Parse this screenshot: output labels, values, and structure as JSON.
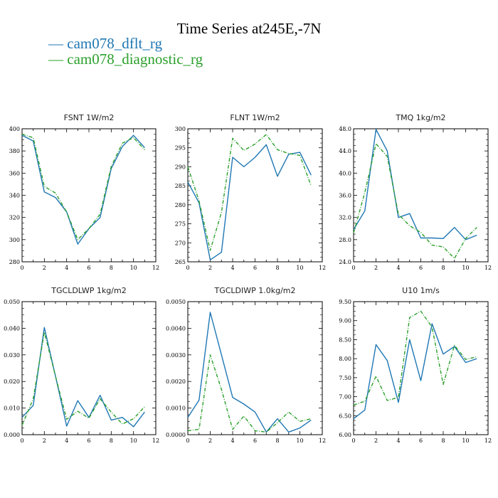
{
  "title": "Time Series at245E,-7N",
  "legend": [
    {
      "label": "— cam078_dflt_rg",
      "color": "#1f77b4"
    },
    {
      "label": "— cam078_diagnostic_rg",
      "color": "#2ca02c"
    }
  ],
  "chart_data": [
    {
      "type": "line",
      "title": "FSNT   1W/m2",
      "xlim": [
        0,
        12
      ],
      "ylim": [
        280,
        400
      ],
      "x_ticks": [
        0,
        2,
        4,
        6,
        8,
        10,
        12
      ],
      "x_tick_labels": [
        "0",
        "2",
        "4",
        "6",
        "8",
        "10",
        "12"
      ],
      "y_ticks": [
        280,
        300,
        320,
        340,
        360,
        380,
        400
      ],
      "y_tick_labels": [
        "280",
        "300",
        "320",
        "340",
        "360",
        "380",
        "400"
      ],
      "x": [
        0,
        1,
        2,
        3,
        4,
        5,
        6,
        7,
        8,
        9,
        10,
        11
      ],
      "series": [
        {
          "name": "cam078_dflt_rg",
          "color": "#1f77b4",
          "dash": "solid",
          "values": [
            394,
            389,
            343,
            338,
            325,
            296,
            310,
            320,
            364,
            384,
            394,
            383
          ]
        },
        {
          "name": "cam078_diagnostic_rg",
          "color": "#2ca02c",
          "dash": "dashed",
          "values": [
            395,
            392,
            348,
            342,
            325,
            300,
            310,
            323,
            366,
            387,
            392,
            381
          ]
        }
      ]
    },
    {
      "type": "line",
      "title": "FLNT   1W/m2",
      "xlim": [
        0,
        12
      ],
      "ylim": [
        265,
        300
      ],
      "x_ticks": [
        0,
        2,
        4,
        6,
        8,
        10,
        12
      ],
      "x_tick_labels": [
        "0",
        "2",
        "4",
        "6",
        "8",
        "10",
        "12"
      ],
      "y_ticks": [
        265,
        270,
        275,
        280,
        285,
        290,
        295,
        300
      ],
      "y_tick_labels": [
        "265",
        "270",
        "275",
        "280",
        "285",
        "290",
        "295",
        "300"
      ],
      "x": [
        0,
        1,
        2,
        3,
        4,
        5,
        6,
        7,
        8,
        9,
        10,
        11
      ],
      "series": [
        {
          "name": "cam078_dflt_rg",
          "color": "#1f77b4",
          "dash": "solid",
          "values": [
            286,
            280.5,
            265.5,
            267.5,
            292.5,
            290,
            292.5,
            295.8,
            287.5,
            293.3,
            293.8,
            287.8
          ]
        },
        {
          "name": "cam078_diagnostic_rg",
          "color": "#2ca02c",
          "dash": "dashed",
          "values": [
            290,
            281,
            268,
            278,
            297.5,
            294.3,
            296,
            298.5,
            294.5,
            293.5,
            293,
            285
          ]
        }
      ]
    },
    {
      "type": "line",
      "title": "TMQ   1kg/m2",
      "xlim": [
        0,
        12
      ],
      "ylim": [
        24,
        48
      ],
      "x_ticks": [
        0,
        2,
        4,
        6,
        8,
        10,
        12
      ],
      "x_tick_labels": [
        "0",
        "2",
        "4",
        "6",
        "8",
        "10",
        "12"
      ],
      "y_ticks": [
        24,
        28,
        32,
        36,
        40,
        44,
        48
      ],
      "y_tick_labels": [
        "24.0",
        "28.0",
        "32.0",
        "36.0",
        "40.0",
        "44.0",
        "48.0"
      ],
      "x": [
        0,
        1,
        2,
        3,
        4,
        5,
        6,
        7,
        8,
        9,
        10,
        11
      ],
      "series": [
        {
          "name": "cam078_dflt_rg",
          "color": "#1f77b4",
          "dash": "solid",
          "values": [
            29.8,
            33.2,
            47.9,
            44,
            32,
            32.7,
            28.3,
            28.3,
            28.2,
            30.2,
            28,
            28.8
          ]
        },
        {
          "name": "cam078_diagnostic_rg",
          "color": "#2ca02c",
          "dash": "dashed",
          "values": [
            29.2,
            36.5,
            45.3,
            43,
            32.6,
            30.5,
            29.3,
            27,
            26.7,
            24.6,
            28.2,
            30.2
          ]
        }
      ]
    },
    {
      "type": "line",
      "title": "TGCLDLWP   1kg/m2",
      "xlim": [
        0,
        12
      ],
      "ylim": [
        0,
        0.05
      ],
      "x_ticks": [
        0,
        2,
        4,
        6,
        8,
        10,
        12
      ],
      "x_tick_labels": [
        "0",
        "2",
        "4",
        "6",
        "8",
        "10",
        "12"
      ],
      "y_ticks": [
        0,
        0.01,
        0.02,
        0.03,
        0.04,
        0.05
      ],
      "y_tick_labels": [
        "0.000",
        "0.010",
        "0.020",
        "0.030",
        "0.040",
        "0.050"
      ],
      "x": [
        0,
        1,
        2,
        3,
        4,
        5,
        6,
        7,
        8,
        9,
        10,
        11
      ],
      "series": [
        {
          "name": "cam078_dflt_rg",
          "color": "#1f77b4",
          "dash": "solid",
          "values": [
            0.0065,
            0.011,
            0.0403,
            0.022,
            0.0032,
            0.0128,
            0.0065,
            0.0148,
            0.0055,
            0.0065,
            0.003,
            0.0085
          ]
        },
        {
          "name": "cam078_diagnostic_rg",
          "color": "#2ca02c",
          "dash": "dashed",
          "values": [
            0.0035,
            0.0135,
            0.0385,
            0.022,
            0.0058,
            0.0088,
            0.0062,
            0.0135,
            0.0085,
            0.004,
            0.006,
            0.0105
          ]
        }
      ]
    },
    {
      "type": "line",
      "title": "TGCLDIWP   1.0kg/m2",
      "xlim": [
        0,
        12
      ],
      "ylim": [
        0,
        0.005
      ],
      "x_ticks": [
        0,
        2,
        4,
        6,
        8,
        10,
        12
      ],
      "x_tick_labels": [
        "0",
        "2",
        "4",
        "6",
        "8",
        "10",
        "12"
      ],
      "y_ticks": [
        0,
        0.001,
        0.002,
        0.003,
        0.004,
        0.005
      ],
      "y_tick_labels": [
        "0.0000",
        "0.0010",
        "0.0020",
        "0.0030",
        "0.0040",
        "0.0050"
      ],
      "x": [
        0,
        1,
        2,
        3,
        4,
        5,
        6,
        7,
        8,
        9,
        10,
        11
      ],
      "series": [
        {
          "name": "cam078_dflt_rg",
          "color": "#1f77b4",
          "dash": "solid",
          "values": [
            0.00065,
            0.0013,
            0.0046,
            0.003,
            0.0014,
            0.00115,
            0.00085,
            0.0001,
            0.0006,
            0.0001,
            0.00025,
            0.00055
          ]
        },
        {
          "name": "cam078_diagnostic_rg",
          "color": "#2ca02c",
          "dash": "dashed",
          "values": [
            0.00015,
            0.0002,
            0.003,
            0.0017,
            0.0002,
            0.0007,
            0.00015,
            0.0001,
            0.00045,
            0.00085,
            0.0005,
            0.0006
          ]
        }
      ]
    },
    {
      "type": "line",
      "title": "U10   1m/s",
      "xlim": [
        0,
        12
      ],
      "ylim": [
        6.0,
        9.5
      ],
      "x_ticks": [
        0,
        2,
        4,
        6,
        8,
        10,
        12
      ],
      "x_tick_labels": [
        "0",
        "2",
        "4",
        "6",
        "8",
        "10",
        "12"
      ],
      "y_ticks": [
        6.0,
        6.5,
        7.0,
        7.5,
        8.0,
        8.5,
        9.0,
        9.5
      ],
      "y_tick_labels": [
        "6.00",
        "6.50",
        "7.00",
        "7.50",
        "8.00",
        "8.50",
        "9.00",
        "9.50"
      ],
      "x": [
        0,
        1,
        2,
        3,
        4,
        5,
        6,
        7,
        8,
        9,
        10,
        11
      ],
      "series": [
        {
          "name": "cam078_dflt_rg",
          "color": "#1f77b4",
          "dash": "solid",
          "values": [
            6.42,
            6.65,
            8.37,
            7.95,
            6.85,
            8.5,
            7.42,
            8.92,
            8.12,
            8.32,
            7.9,
            8.0
          ]
        },
        {
          "name": "cam078_diagnostic_rg",
          "color": "#2ca02c",
          "dash": "dashed",
          "values": [
            6.78,
            6.88,
            7.54,
            6.9,
            6.98,
            9.08,
            9.25,
            8.83,
            7.32,
            8.35,
            7.98,
            8.05
          ]
        }
      ]
    }
  ]
}
